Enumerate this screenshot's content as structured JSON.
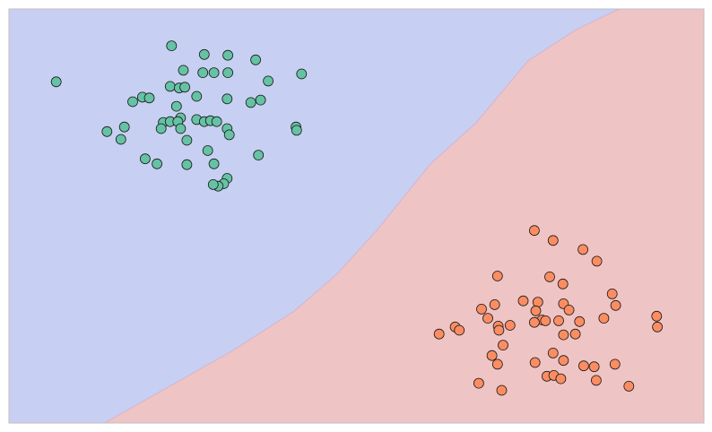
{
  "chart_data": {
    "type": "scatter",
    "title": "",
    "xlabel": "",
    "ylabel": "",
    "xlim": [
      0,
      100
    ],
    "ylim": [
      0,
      100
    ],
    "grid": false,
    "legend": "none",
    "axes_visible": false,
    "decision_boundary": {
      "points": [
        [
          13.7,
          0
        ],
        [
          22.6,
          8.4
        ],
        [
          32.4,
          17.7
        ],
        [
          41.1,
          27.1
        ],
        [
          47.2,
          36.0
        ],
        [
          52.9,
          46.5
        ],
        [
          60.6,
          62.5
        ],
        [
          67.2,
          72.5
        ],
        [
          74.7,
          87.5
        ],
        [
          81.6,
          95.0
        ],
        [
          87.8,
          100
        ]
      ],
      "region_above_color": "#c7d0f2",
      "region_below_color": "#efc4c4"
    },
    "series": [
      {
        "color": "#66c2a5",
        "points": [
          [
            6.8,
            82.4
          ],
          [
            23.4,
            91.1
          ],
          [
            28.1,
            89.0
          ],
          [
            31.5,
            88.8
          ],
          [
            35.5,
            87.7
          ],
          [
            25.1,
            85.2
          ],
          [
            27.9,
            84.6
          ],
          [
            29.5,
            84.6
          ],
          [
            31.5,
            84.6
          ],
          [
            37.3,
            82.6
          ],
          [
            42.1,
            84.3
          ],
          [
            23.2,
            81.3
          ],
          [
            24.5,
            80.9
          ],
          [
            25.3,
            81.1
          ],
          [
            27.0,
            78.9
          ],
          [
            19.2,
            78.7
          ],
          [
            20.2,
            78.5
          ],
          [
            17.8,
            77.6
          ],
          [
            31.4,
            78.3
          ],
          [
            36.2,
            78.0
          ],
          [
            34.8,
            77.4
          ],
          [
            24.1,
            76.5
          ],
          [
            24.7,
            73.7
          ],
          [
            22.2,
            72.6
          ],
          [
            23.2,
            72.8
          ],
          [
            24.3,
            72.8
          ],
          [
            27.0,
            73.3
          ],
          [
            28.1,
            72.8
          ],
          [
            29.0,
            73.0
          ],
          [
            29.9,
            72.8
          ],
          [
            16.6,
            71.5
          ],
          [
            14.1,
            70.4
          ],
          [
            21.9,
            71.1
          ],
          [
            24.7,
            71.1
          ],
          [
            31.4,
            71.1
          ],
          [
            16.1,
            68.5
          ],
          [
            25.6,
            68.3
          ],
          [
            31.7,
            69.6
          ],
          [
            41.3,
            71.5
          ],
          [
            41.4,
            70.7
          ],
          [
            28.6,
            65.8
          ],
          [
            19.6,
            63.8
          ],
          [
            21.3,
            62.6
          ],
          [
            25.6,
            62.4
          ],
          [
            29.5,
            62.6
          ],
          [
            35.9,
            64.7
          ],
          [
            31.4,
            59.1
          ],
          [
            30.9,
            57.8
          ],
          [
            30.1,
            57.2
          ],
          [
            29.4,
            57.6
          ]
        ]
      },
      {
        "color": "#fc8d62",
        "points": [
          [
            75.6,
            46.5
          ],
          [
            78.3,
            44.1
          ],
          [
            82.6,
            41.9
          ],
          [
            84.6,
            39.1
          ],
          [
            70.3,
            35.5
          ],
          [
            77.8,
            35.3
          ],
          [
            79.7,
            33.6
          ],
          [
            74.0,
            29.5
          ],
          [
            86.8,
            31.2
          ],
          [
            69.9,
            28.6
          ],
          [
            76.1,
            29.2
          ],
          [
            79.8,
            28.8
          ],
          [
            87.3,
            28.4
          ],
          [
            68.0,
            27.5
          ],
          [
            68.9,
            25.3
          ],
          [
            75.8,
            27.1
          ],
          [
            80.6,
            27.3
          ],
          [
            93.2,
            25.8
          ],
          [
            76.7,
            24.9
          ],
          [
            77.2,
            24.7
          ],
          [
            79.1,
            24.7
          ],
          [
            82.1,
            24.5
          ],
          [
            85.6,
            25.3
          ],
          [
            64.2,
            23.2
          ],
          [
            70.4,
            23.4
          ],
          [
            72.1,
            23.6
          ],
          [
            75.6,
            24.3
          ],
          [
            93.3,
            23.2
          ],
          [
            61.9,
            21.5
          ],
          [
            64.8,
            22.4
          ],
          [
            70.5,
            22.4
          ],
          [
            79.8,
            21.3
          ],
          [
            81.5,
            21.5
          ],
          [
            71.1,
            18.8
          ],
          [
            69.5,
            16.3
          ],
          [
            78.3,
            16.9
          ],
          [
            70.3,
            14.2
          ],
          [
            75.7,
            14.6
          ],
          [
            79.8,
            15.1
          ],
          [
            82.7,
            13.8
          ],
          [
            84.2,
            13.6
          ],
          [
            87.2,
            14.2
          ],
          [
            67.6,
            9.6
          ],
          [
            77.4,
            11.3
          ],
          [
            78.4,
            11.5
          ],
          [
            79.4,
            10.7
          ],
          [
            84.5,
            10.3
          ],
          [
            89.2,
            8.9
          ],
          [
            70.9,
            7.9
          ]
        ]
      }
    ]
  }
}
